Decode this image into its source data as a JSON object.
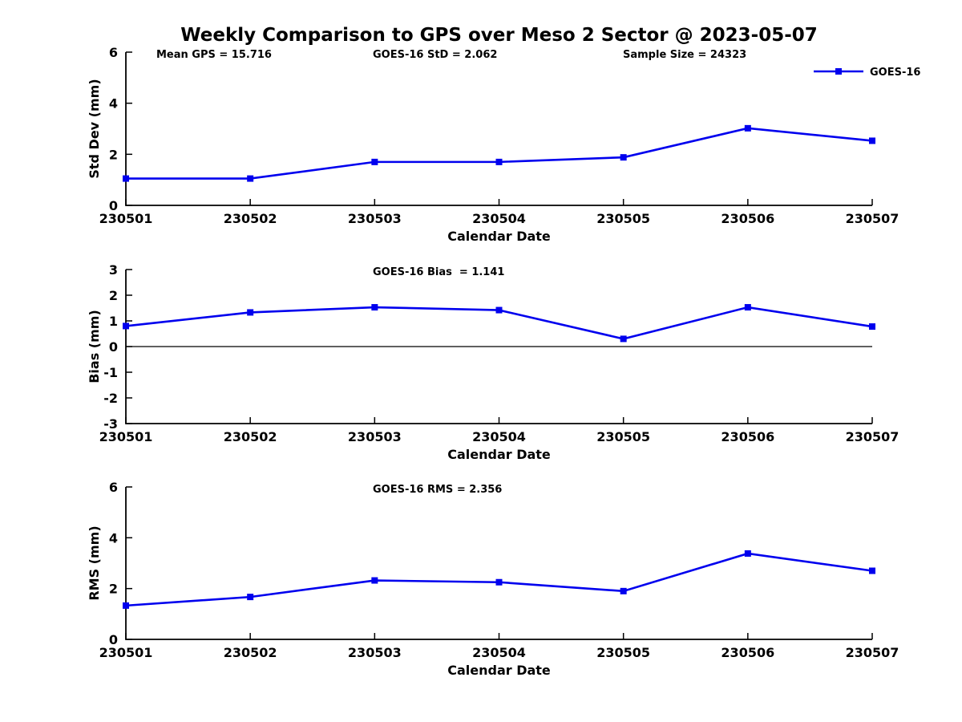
{
  "figure": {
    "title": "Weekly Comparison to GPS over Meso 2 Sector @ 2023-05-07"
  },
  "colors": {
    "series_blue": "#0000EE",
    "axis": "#000000",
    "background": "#FFFFFF"
  },
  "stats": {
    "mean_gps": 15.716,
    "goes16_std": 2.062,
    "sample_size": 24323,
    "goes16_bias": 1.141,
    "goes16_rms": 2.356
  },
  "chart_data": [
    {
      "type": "line",
      "title": "",
      "xlabel": "Calendar Date",
      "ylabel": "Std Dev (mm)",
      "categories": [
        "230501",
        "230502",
        "230503",
        "230504",
        "230505",
        "230506",
        "230507"
      ],
      "series": [
        {
          "name": "GOES-16",
          "values": [
            1.05,
            1.05,
            1.7,
            1.7,
            1.88,
            3.02,
            2.53
          ]
        }
      ],
      "ylim": [
        0,
        6
      ],
      "yticks": [
        0,
        2,
        4,
        6
      ],
      "grid": false,
      "zero_line": false,
      "annotations": [
        "Mean GPS = 15.716",
        "GOES-16 StD = 2.062",
        "Sample Size = 24323"
      ],
      "legend": {
        "position": "top-right",
        "entries": [
          "GOES-16"
        ]
      }
    },
    {
      "type": "line",
      "title": "",
      "xlabel": "Calendar Date",
      "ylabel": "Bias (mm)",
      "categories": [
        "230501",
        "230502",
        "230503",
        "230504",
        "230505",
        "230506",
        "230507"
      ],
      "series": [
        {
          "name": "GOES-16",
          "values": [
            0.8,
            1.33,
            1.53,
            1.42,
            0.3,
            1.53,
            0.78
          ]
        }
      ],
      "ylim": [
        -3,
        3
      ],
      "yticks": [
        -3,
        -2,
        -1,
        0,
        1,
        2,
        3
      ],
      "grid": false,
      "zero_line": true,
      "annotations": [
        "GOES-16 Bias  = 1.141"
      ],
      "legend": null
    },
    {
      "type": "line",
      "title": "",
      "xlabel": "Calendar Date",
      "ylabel": "RMS (mm)",
      "categories": [
        "230501",
        "230502",
        "230503",
        "230504",
        "230505",
        "230506",
        "230507"
      ],
      "series": [
        {
          "name": "GOES-16",
          "values": [
            1.33,
            1.67,
            2.32,
            2.25,
            1.9,
            3.38,
            2.7
          ]
        }
      ],
      "ylim": [
        0,
        6
      ],
      "yticks": [
        0,
        2,
        4,
        6
      ],
      "grid": false,
      "zero_line": false,
      "annotations": [
        "GOES-16 RMS = 2.356"
      ],
      "legend": null
    }
  ]
}
